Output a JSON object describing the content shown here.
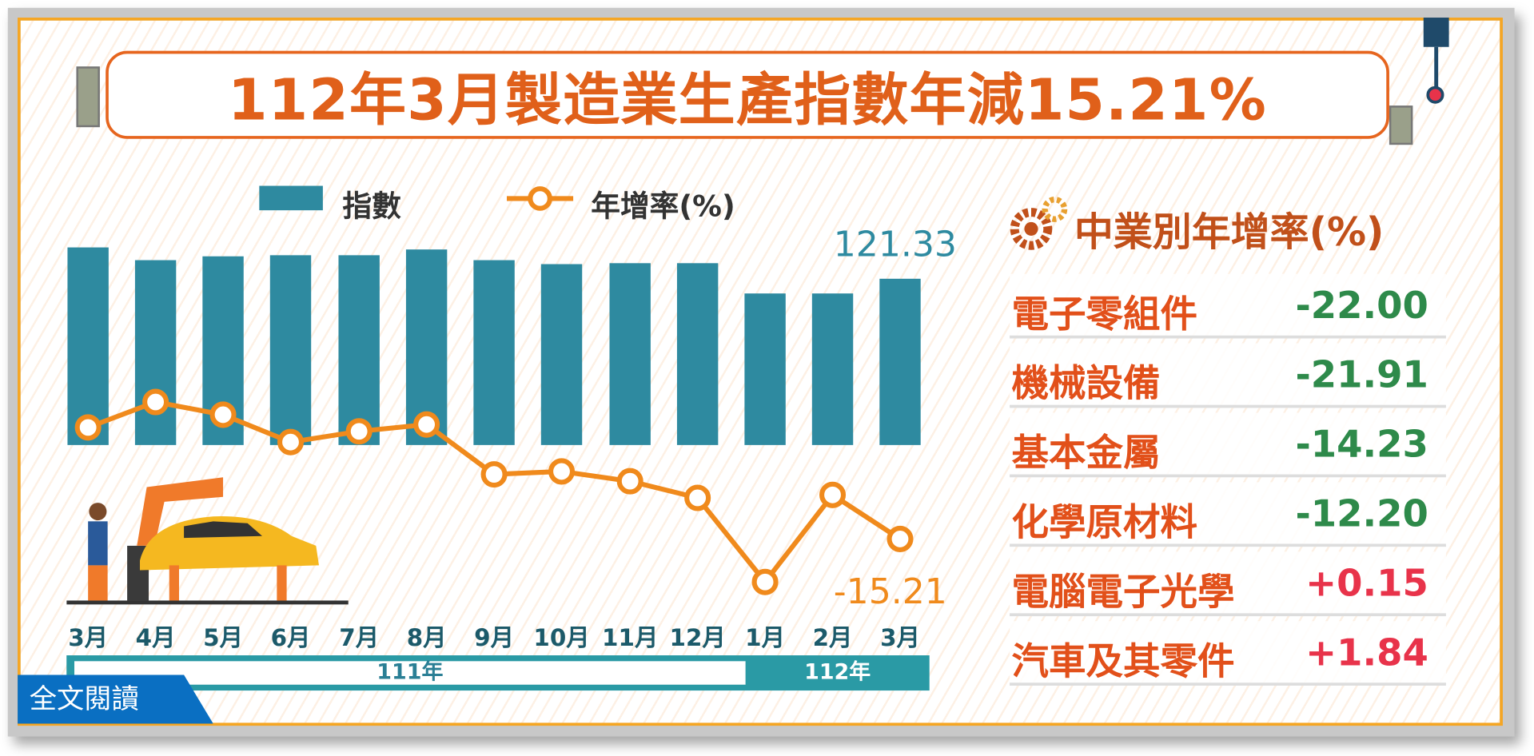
{
  "title": "112年3月製造業生產指數年減15.21%",
  "chart_data": {
    "type": "bar+line",
    "legend": {
      "bar": "指數",
      "line": "年增率(%)"
    },
    "categories": [
      "3月",
      "4月",
      "5月",
      "6月",
      "7月",
      "8月",
      "9月",
      "10月",
      "11月",
      "12月",
      "1月",
      "2月",
      "3月"
    ],
    "year_groups": [
      {
        "label": "111年",
        "span": 10
      },
      {
        "label": "112年",
        "span": 3
      }
    ],
    "series": [
      {
        "name": "指數",
        "type": "bar",
        "values": [
          144.2,
          134.9,
          137.7,
          138.5,
          138.5,
          142.7,
          134.9,
          132.0,
          132.7,
          132.7,
          110.6,
          110.6,
          121.33
        ]
      },
      {
        "name": "年增率(%)",
        "type": "line",
        "values": [
          7.6,
          12.8,
          10.2,
          4.6,
          6.8,
          8.2,
          -2.0,
          -1.4,
          -3.4,
          -6.8,
          -24.0,
          -6.2,
          -15.21
        ]
      }
    ],
    "data_labels": {
      "bar_last": "121.33",
      "line_last": "-15.21"
    },
    "colors": {
      "bar": "#2e8aa0",
      "line": "#f08a1c"
    }
  },
  "industry": {
    "title": "中業別年增率(%)",
    "rows": [
      {
        "name": "電子零組件",
        "value": "-22.00",
        "color": "#2e8a4a"
      },
      {
        "name": "機械設備",
        "value": "-21.91",
        "color": "#2e8a4a"
      },
      {
        "name": "基本金屬",
        "value": "-14.23",
        "color": "#2e8a4a"
      },
      {
        "name": "化學原材料",
        "value": "-12.20",
        "color": "#2e8a4a"
      },
      {
        "name": "電腦電子光學",
        "value": "+0.15",
        "color": "#e8334a"
      },
      {
        "name": "汽車及其零件",
        "value": "+1.84",
        "color": "#e8334a"
      }
    ]
  },
  "read_button": "全文閱讀"
}
